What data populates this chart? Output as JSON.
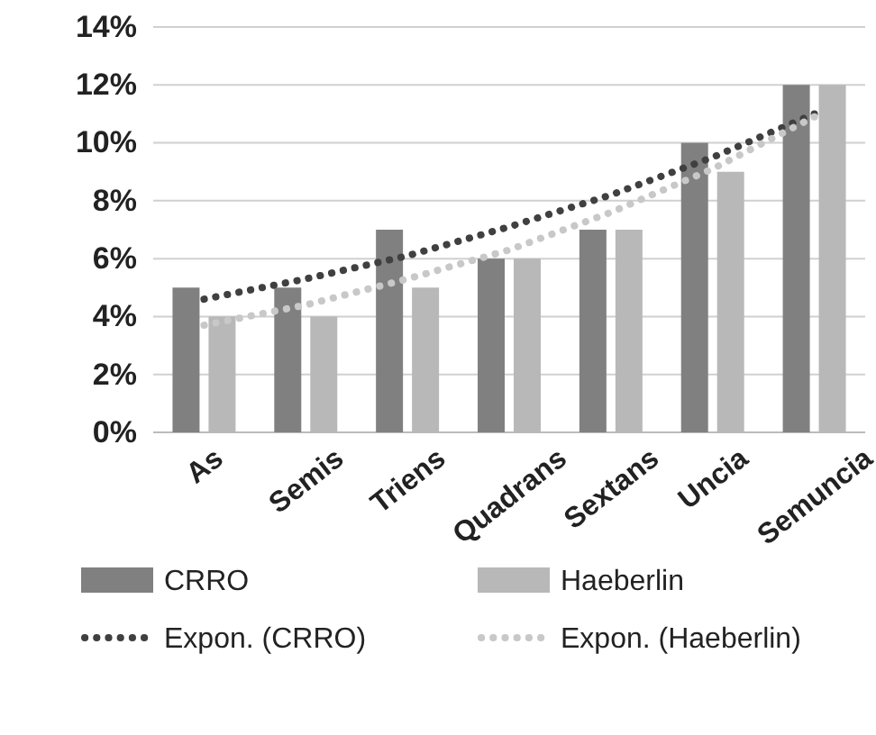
{
  "chart_data": {
    "type": "bar",
    "categories": [
      "As",
      "Semis",
      "Triens",
      "Quadrans",
      "Sextans",
      "Uncia",
      "Semuncia"
    ],
    "series": [
      {
        "name": "CRRO",
        "color": "#808080",
        "values": [
          5,
          5,
          7,
          6,
          7,
          10,
          12
        ]
      },
      {
        "name": "Haeberlin",
        "color": "#b8b8b8",
        "values": [
          4,
          4,
          5,
          6,
          7,
          9,
          12
        ]
      },
      {
        "name": "Expon. (CRRO)",
        "type": "line",
        "line_style": "dotted",
        "color": "#404040",
        "values": [
          4.6,
          5.3,
          6.1,
          7.1,
          8.2,
          9.5,
          11.0
        ]
      },
      {
        "name": "Expon. (Haeberlin)",
        "type": "line",
        "line_style": "dotted",
        "color": "#c8c8c8",
        "values": [
          3.7,
          4.4,
          5.3,
          6.3,
          7.6,
          9.1,
          10.9
        ]
      }
    ],
    "ylim": [
      0,
      14
    ],
    "yticks": [
      {
        "value": 0,
        "label": "0%"
      },
      {
        "value": 2,
        "label": "2%"
      },
      {
        "value": 4,
        "label": "4%"
      },
      {
        "value": 6,
        "label": "6%"
      },
      {
        "value": 8,
        "label": "8%"
      },
      {
        "value": 10,
        "label": "10%"
      },
      {
        "value": 12,
        "label": "12%"
      },
      {
        "value": 14,
        "label": "14%"
      }
    ],
    "grid": "y",
    "legend": "bottom",
    "marker": "none"
  }
}
